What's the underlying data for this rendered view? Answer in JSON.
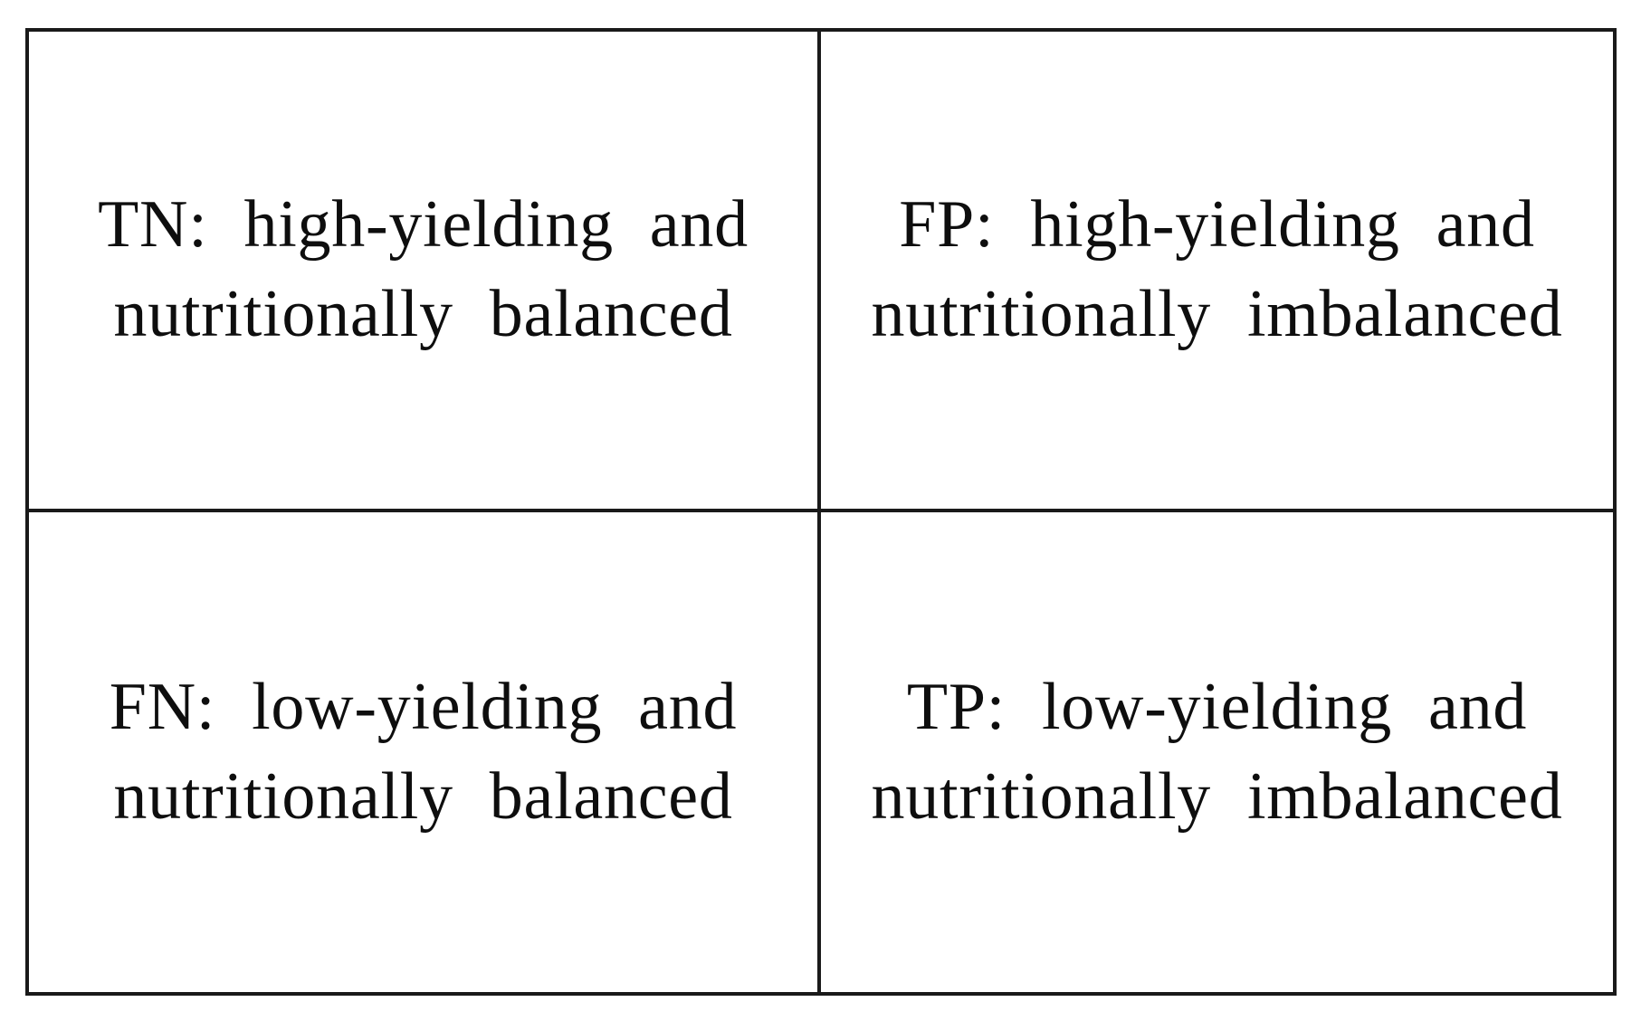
{
  "figure": {
    "type": "confusion-matrix-definition-table",
    "style": {
      "border_color": "#1a1a1a",
      "background": "#ffffff",
      "text_color": "#0e0e0e"
    },
    "cells": {
      "tn": {
        "abbr": "TN",
        "line1": "TN: high-yielding and",
        "line2": "nutritionally balanced",
        "full_text": "TN: high-yielding and nutritionally balanced"
      },
      "fp": {
        "abbr": "FP",
        "line1": "FP: high-yielding and",
        "line2": "nutritionally imbalanced",
        "full_text": "FP: high-yielding and nutritionally imbalanced"
      },
      "fn": {
        "abbr": "FN",
        "line1": "FN: low-yielding and",
        "line2": "nutritionally balanced",
        "full_text": "FN: low-yielding and nutritionally balanced"
      },
      "tp": {
        "abbr": "TP",
        "line1": "TP: low-yielding and",
        "line2": "nutritionally imbalanced",
        "full_text": "TP: low-yielding and nutritionally imbalanced"
      }
    }
  }
}
